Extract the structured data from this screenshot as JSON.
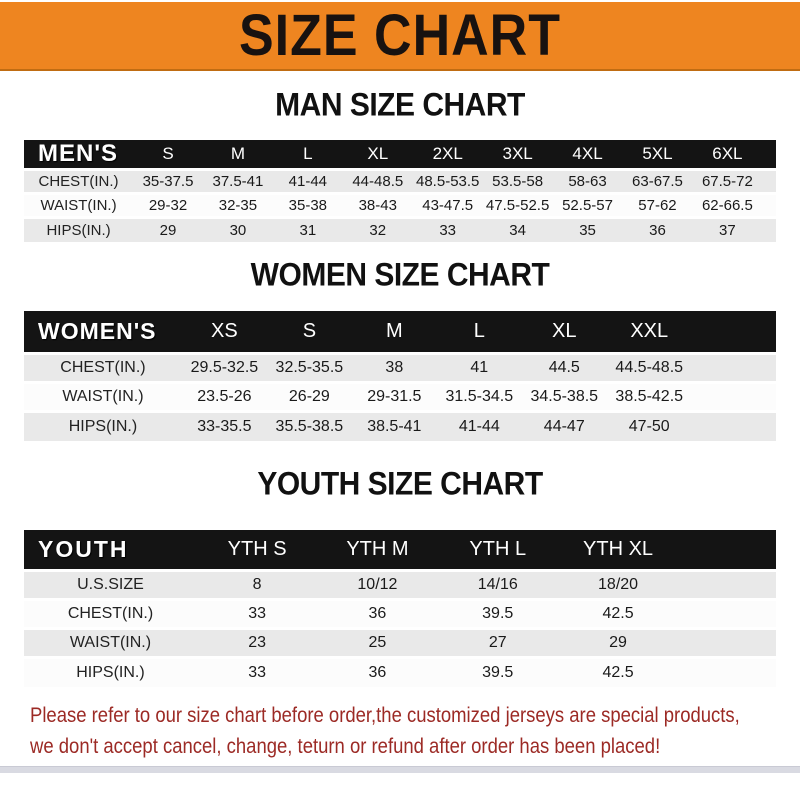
{
  "banner": {
    "title": "SIZE CHART"
  },
  "sections": [
    {
      "id": "men",
      "heading": "MAN SIZE CHART",
      "table": {
        "header": [
          "MEN'S",
          "S",
          "M",
          "L",
          "XL",
          "2XL",
          "3XL",
          "4XL",
          "5XL",
          "6XL"
        ],
        "rows": [
          [
            "CHEST(IN.)",
            "35-37.5",
            "37.5-41",
            "41-44",
            "44-48.5",
            "48.5-53.5",
            "53.5-58",
            "58-63",
            "63-67.5",
            "67.5-72"
          ],
          [
            "WAIST(IN.)",
            "29-32",
            "32-35",
            "35-38",
            "38-43",
            "43-47.5",
            "47.5-52.5",
            "52.5-57",
            "57-62",
            "62-66.5"
          ],
          [
            "HIPS(IN.)",
            "29",
            "30",
            "31",
            "32",
            "33",
            "34",
            "35",
            "36",
            "37"
          ]
        ]
      }
    },
    {
      "id": "women",
      "heading": "WOMEN SIZE CHART",
      "table": {
        "header": [
          "WOMEN'S",
          "XS",
          "S",
          "M",
          "L",
          "XL",
          "XXL"
        ],
        "rows": [
          [
            "CHEST(IN.)",
            "29.5-32.5",
            "32.5-35.5",
            "38",
            "41",
            "44.5",
            "44.5-48.5"
          ],
          [
            "WAIST(IN.)",
            "23.5-26",
            "26-29",
            "29-31.5",
            "31.5-34.5",
            "34.5-38.5",
            "38.5-42.5"
          ],
          [
            "HIPS(IN.)",
            "33-35.5",
            "35.5-38.5",
            "38.5-41",
            "41-44",
            "44-47",
            "47-50"
          ]
        ]
      }
    },
    {
      "id": "youth",
      "heading": "YOUTH SIZE CHART",
      "table": {
        "header": [
          "YOUTH",
          "YTH S",
          "YTH M",
          "YTH L",
          "YTH XL"
        ],
        "rows": [
          [
            "U.S.SIZE",
            "8",
            "10/12",
            "14/16",
            "18/20"
          ],
          [
            "CHEST(IN.)",
            "33",
            "36",
            "39.5",
            "42.5"
          ],
          [
            "WAIST(IN.)",
            "23",
            "25",
            "27",
            "29"
          ],
          [
            "HIPS(IN.)",
            "33",
            "36",
            "39.5",
            "42.5"
          ]
        ]
      }
    }
  ],
  "footer": {
    "line1": "Please refer to our size chart before order,the customized jerseys are special products,",
    "line2": "we don't accept cancel, change, teturn or refund after order has been placed!"
  },
  "colors": {
    "banner_orange": "#ee8520",
    "header_bar_black": "#141414",
    "row_stripe_gray": "#e9e9e9",
    "notice_red": "#9c2a25",
    "bottom_strip": "#d9dae2"
  }
}
